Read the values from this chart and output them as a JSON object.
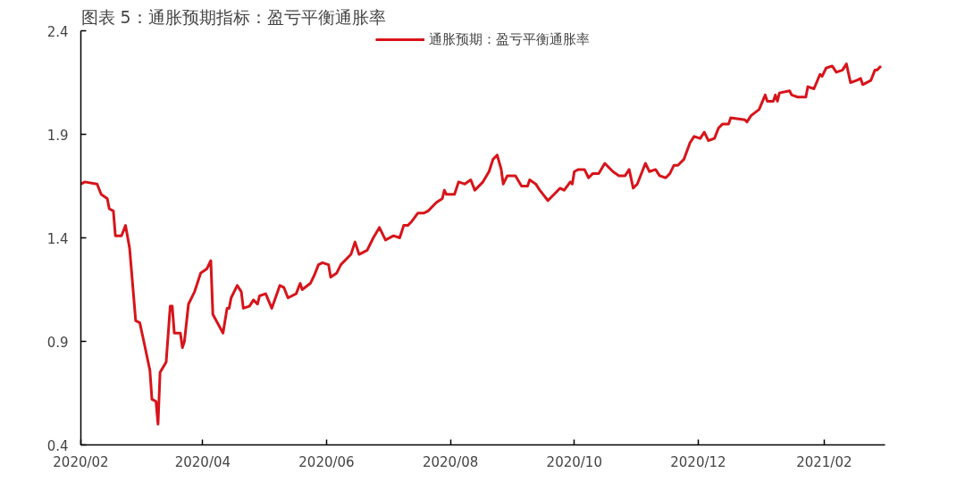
{
  "chart_data": {
    "type": "line",
    "title": "图表 5：通胀预期指标：盈亏平衡通胀率",
    "x": [
      "2020-02-01",
      "2020-02-03",
      "2020-02-09",
      "2020-02-11",
      "2020-02-14",
      "2020-02-15",
      "2020-02-17",
      "2020-02-18",
      "2020-02-21",
      "2020-02-23",
      "2020-02-25",
      "2020-02-28",
      "2020-03-01",
      "2020-03-03",
      "2020-03-06",
      "2020-03-07",
      "2020-03-09",
      "2020-03-10",
      "2020-03-11",
      "2020-03-14",
      "2020-03-16",
      "2020-03-17",
      "2020-03-18",
      "2020-03-21",
      "2020-03-22",
      "2020-03-23",
      "2020-03-25",
      "2020-03-28",
      "2020-03-31",
      "2020-04-03",
      "2020-04-05",
      "2020-04-06",
      "2020-04-11",
      "2020-04-13",
      "2020-04-14",
      "2020-04-15",
      "2020-04-18",
      "2020-04-20",
      "2020-04-21",
      "2020-04-24",
      "2020-04-26",
      "2020-04-28",
      "2020-04-29",
      "2020-05-02",
      "2020-05-05",
      "2020-05-09",
      "2020-05-11",
      "2020-05-13",
      "2020-05-17",
      "2020-05-19",
      "2020-05-20",
      "2020-05-24",
      "2020-05-26",
      "2020-05-28",
      "2020-05-30",
      "2020-06-02",
      "2020-06-03",
      "2020-06-06",
      "2020-06-08",
      "2020-06-13",
      "2020-06-15",
      "2020-06-17",
      "2020-06-21",
      "2020-06-24",
      "2020-06-27",
      "2020-06-30",
      "2020-07-04",
      "2020-07-07",
      "2020-07-09",
      "2020-07-11",
      "2020-07-13",
      "2020-07-16",
      "2020-07-19",
      "2020-07-21",
      "2020-07-25",
      "2020-07-28",
      "2020-07-29",
      "2020-07-30",
      "2020-08-03",
      "2020-08-05",
      "2020-08-08",
      "2020-08-11",
      "2020-08-13",
      "2020-08-17",
      "2020-08-20",
      "2020-08-22",
      "2020-08-24",
      "2020-08-26",
      "2020-08-27",
      "2020-08-29",
      "2020-09-01",
      "2020-09-02",
      "2020-09-05",
      "2020-09-08",
      "2020-09-09",
      "2020-09-12",
      "2020-09-14",
      "2020-09-18",
      "2020-09-22",
      "2020-09-24",
      "2020-09-26",
      "2020-09-29",
      "2020-09-30",
      "2020-10-01",
      "2020-10-03",
      "2020-10-06",
      "2020-10-08",
      "2020-10-10",
      "2020-10-13",
      "2020-10-16",
      "2020-10-20",
      "2020-10-23",
      "2020-10-26",
      "2020-10-28",
      "2020-10-30",
      "2020-11-01",
      "2020-11-05",
      "2020-11-07",
      "2020-11-10",
      "2020-11-12",
      "2020-11-15",
      "2020-11-17",
      "2020-11-19",
      "2020-11-21",
      "2020-11-24",
      "2020-11-27",
      "2020-11-29",
      "2020-12-02",
      "2020-12-04",
      "2020-12-06",
      "2020-12-09",
      "2020-12-11",
      "2020-12-13",
      "2020-12-16",
      "2020-12-17",
      "2020-12-24",
      "2020-12-25",
      "2020-12-27",
      "2020-12-31",
      "2021-01-03",
      "2021-01-04",
      "2021-01-07",
      "2021-01-08",
      "2021-01-09",
      "2021-01-10",
      "2021-01-15",
      "2021-01-16",
      "2021-01-19",
      "2021-01-23",
      "2021-01-24",
      "2021-01-27",
      "2021-01-30",
      "2021-01-31",
      "2021-02-02",
      "2021-02-05",
      "2021-02-07",
      "2021-02-10",
      "2021-02-12",
      "2021-02-14",
      "2021-02-17",
      "2021-02-19",
      "2021-02-20",
      "2021-02-24",
      "2021-02-26",
      "2021-02-27",
      "2021-03-01"
    ],
    "series": [
      {
        "name": "通胀预期：盈亏平衡通胀率",
        "color": "#d7141a",
        "values": [
          1.66,
          1.67,
          1.66,
          1.61,
          1.59,
          1.54,
          1.53,
          1.41,
          1.41,
          1.46,
          1.35,
          1.0,
          0.99,
          0.9,
          0.76,
          0.62,
          0.61,
          0.5,
          0.75,
          0.8,
          1.07,
          1.07,
          0.94,
          0.94,
          0.87,
          0.9,
          1.08,
          1.14,
          1.23,
          1.25,
          1.29,
          1.03,
          0.94,
          1.06,
          1.06,
          1.11,
          1.17,
          1.14,
          1.06,
          1.07,
          1.1,
          1.08,
          1.12,
          1.13,
          1.06,
          1.17,
          1.16,
          1.11,
          1.13,
          1.18,
          1.15,
          1.18,
          1.22,
          1.27,
          1.28,
          1.27,
          1.21,
          1.23,
          1.27,
          1.32,
          1.38,
          1.32,
          1.34,
          1.4,
          1.45,
          1.39,
          1.41,
          1.4,
          1.46,
          1.46,
          1.48,
          1.52,
          1.52,
          1.53,
          1.57,
          1.59,
          1.63,
          1.61,
          1.61,
          1.67,
          1.66,
          1.68,
          1.63,
          1.67,
          1.72,
          1.78,
          1.8,
          1.73,
          1.66,
          1.7,
          1.7,
          1.7,
          1.65,
          1.65,
          1.68,
          1.66,
          1.63,
          1.58,
          1.62,
          1.64,
          1.63,
          1.67,
          1.66,
          1.72,
          1.73,
          1.73,
          1.69,
          1.71,
          1.71,
          1.76,
          1.72,
          1.7,
          1.7,
          1.73,
          1.64,
          1.66,
          1.76,
          1.72,
          1.73,
          1.7,
          1.69,
          1.71,
          1.75,
          1.75,
          1.78,
          1.86,
          1.89,
          1.88,
          1.91,
          1.87,
          1.88,
          1.93,
          1.95,
          1.95,
          1.98,
          1.97,
          1.96,
          1.99,
          2.02,
          2.09,
          2.06,
          2.06,
          2.09,
          2.06,
          2.1,
          2.11,
          2.09,
          2.08,
          2.08,
          2.13,
          2.12,
          2.19,
          2.18,
          2.22,
          2.23,
          2.2,
          2.21,
          2.24,
          2.15,
          2.16,
          2.17,
          2.14,
          2.16,
          2.21,
          2.21,
          2.23
        ]
      }
    ],
    "xlim": [
      "2020-02-01",
      "2021-03-03"
    ],
    "xticks": [
      {
        "value": "2020-02-01",
        "label": "2020/02"
      },
      {
        "value": "2020-04-01",
        "label": "2020/04"
      },
      {
        "value": "2020-06-01",
        "label": "2020/06"
      },
      {
        "value": "2020-08-01",
        "label": "2020/08"
      },
      {
        "value": "2020-10-01",
        "label": "2020/10"
      },
      {
        "value": "2020-12-01",
        "label": "2020/12"
      },
      {
        "value": "2021-02-01",
        "label": "2021/02"
      }
    ],
    "ylim": [
      0.4,
      2.4
    ],
    "yticks": [
      0.4,
      0.9,
      1.4,
      1.9,
      2.4
    ],
    "grid": false,
    "legend": "top",
    "line_style": "solid",
    "marker": "none"
  }
}
